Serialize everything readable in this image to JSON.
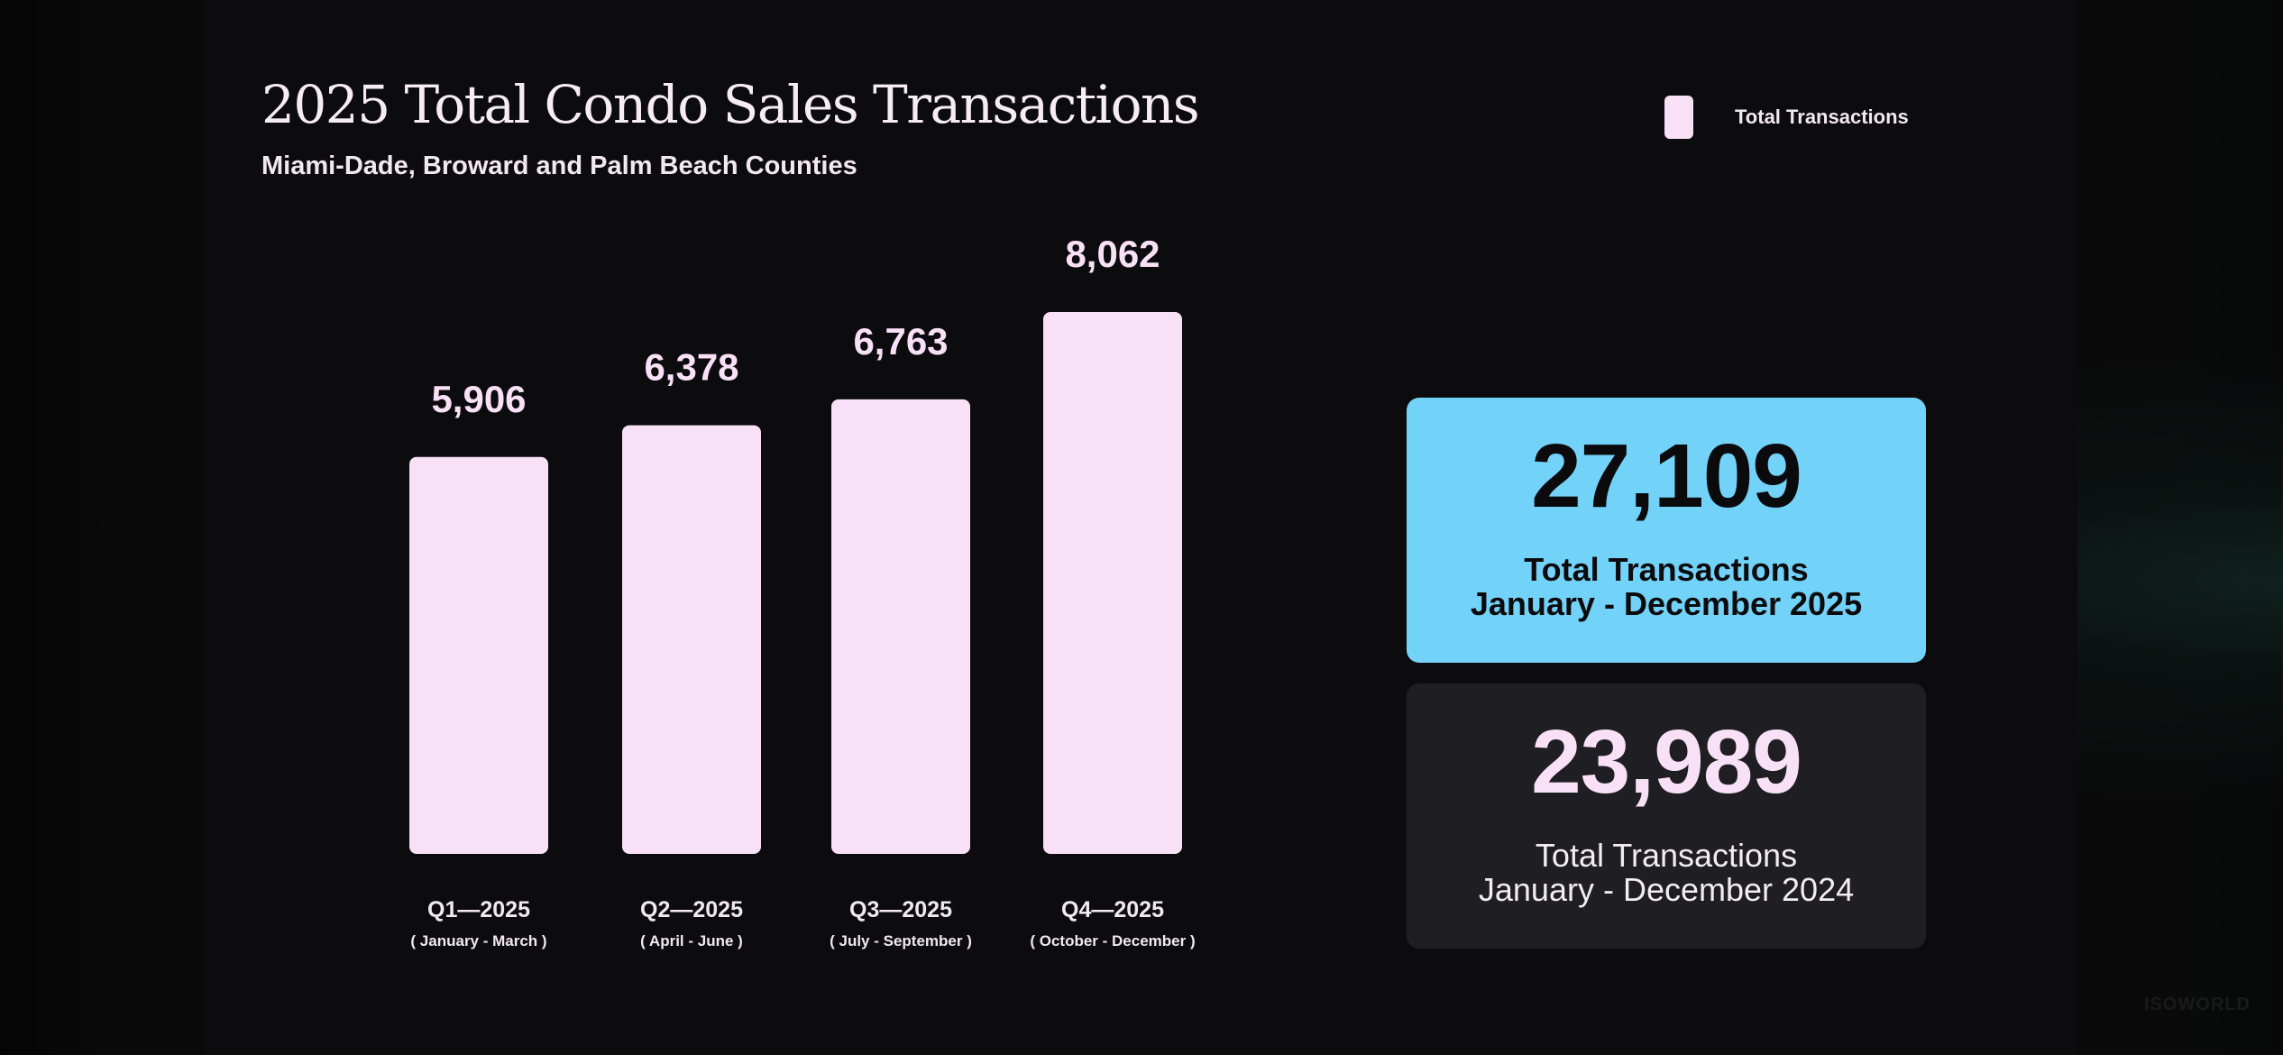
{
  "title": "2025 Total Condo Sales Transactions",
  "subtitle": "Miami-Dade, Broward and Palm Beach Counties",
  "legend": {
    "label": "Total Transactions",
    "color": "#f8e0f7"
  },
  "chart_data": {
    "type": "bar",
    "title": "2025 Total Condo Sales Transactions",
    "subtitle": "Miami-Dade, Broward and Palm Beach Counties",
    "categories": [
      "Q1—2025",
      "Q2—2025",
      "Q3—2025",
      "Q4—2025"
    ],
    "category_ranges": [
      "( January - March )",
      "( April - June )",
      "( July - September )",
      "( October - December )"
    ],
    "values": [
      5906,
      6378,
      6763,
      8062
    ],
    "value_labels": [
      "5,906",
      "6,378",
      "6,763",
      "8,062"
    ],
    "series_name": "Total Transactions",
    "bar_color": "#f8e0f7",
    "xlabel": "",
    "ylabel": "",
    "grid": false,
    "legend_position": "top-right"
  },
  "cards": {
    "current": {
      "value": "27,109",
      "label_line1": "Total Transactions",
      "label_line2": "January - December 2025",
      "color": "#73d2f8"
    },
    "previous": {
      "value": "23,989",
      "label_line1": "Total Transactions",
      "label_line2": "January - December 2024",
      "color": "#1f1e22"
    }
  },
  "watermark": "ISOWORLD"
}
